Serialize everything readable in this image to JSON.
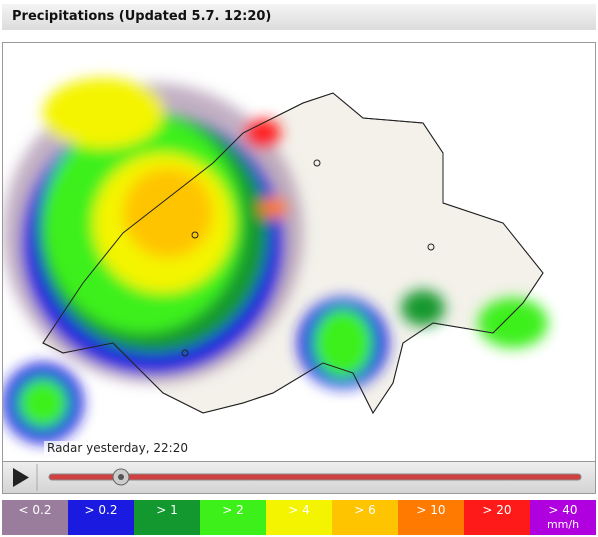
{
  "header": {
    "title": "Precipitations (Updated 5.7. 12:20)"
  },
  "map": {
    "caption": "Radar yesterday, 22:20"
  },
  "legend": {
    "items": [
      {
        "label": "< 0.2",
        "color": "#9a7c9c"
      },
      {
        "label": "> 0.2",
        "color": "#1a1ae0"
      },
      {
        "label": "> 1",
        "color": "#12982e"
      },
      {
        "label": "> 2",
        "color": "#3ef01a"
      },
      {
        "label": "> 4",
        "color": "#f4f400"
      },
      {
        "label": "> 6",
        "color": "#ffc400"
      },
      {
        "label": "> 10",
        "color": "#ff7a00"
      },
      {
        "label": "> 20",
        "color": "#ff1a1a"
      },
      {
        "label": "> 40",
        "color": "#b000e0"
      }
    ],
    "unit": "mm/h"
  }
}
